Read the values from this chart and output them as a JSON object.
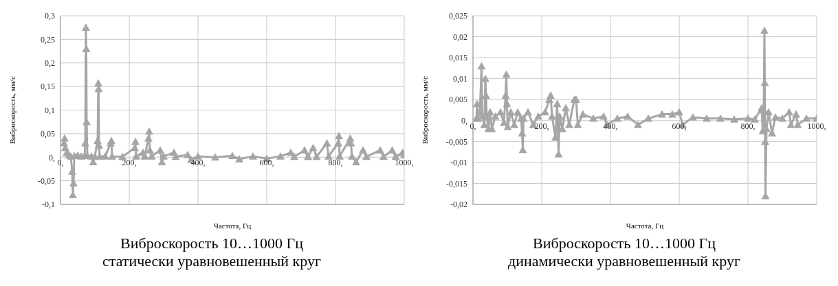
{
  "chart_data": [
    {
      "type": "line",
      "title": "Виброскорость 10…1000 Гц",
      "subtitle": "статически уравновешенный круг",
      "xlabel": "Частота, Гц",
      "ylabel": "Виброскорость, мм/с",
      "color": "#a6a6a6",
      "marker": "triangle",
      "grid": true,
      "xlim": [
        0,
        1000
      ],
      "xticks": [
        {
          "value": 0,
          "label": "0,"
        },
        {
          "value": 200,
          "label": "200,"
        },
        {
          "value": 400,
          "label": "400,"
        },
        {
          "value": 600,
          "label": "600,"
        },
        {
          "value": 800,
          "label": "800,"
        },
        {
          "value": 1000,
          "label": "1000,"
        }
      ],
      "ylim": [
        -0.1,
        0.3
      ],
      "yticks": [
        {
          "value": -0.1,
          "label": "-0,1"
        },
        {
          "value": -0.05,
          "label": "-0,05"
        },
        {
          "value": 0,
          "label": "0,"
        },
        {
          "value": 0.05,
          "label": "0,05"
        },
        {
          "value": 0.1,
          "label": "0,1"
        },
        {
          "value": 0.15,
          "label": "0,15"
        },
        {
          "value": 0.2,
          "label": "0,2"
        },
        {
          "value": 0.25,
          "label": "0,25"
        },
        {
          "value": 0.3,
          "label": "0,3"
        }
      ],
      "x": [
        10,
        12,
        14,
        18,
        24,
        30,
        34,
        36,
        38,
        40,
        50,
        60,
        70,
        72,
        74,
        75,
        76,
        78,
        90,
        95,
        100,
        108,
        110,
        111,
        112,
        114,
        130,
        146,
        148,
        150,
        180,
        216,
        218,
        220,
        240,
        245,
        256,
        258,
        260,
        265,
        290,
        295,
        300,
        330,
        335,
        370,
        380,
        400,
        450,
        500,
        520,
        560,
        600,
        640,
        670,
        680,
        710,
        720,
        735,
        745,
        775,
        780,
        808,
        810,
        812,
        843,
        845,
        848,
        860,
        880,
        890,
        930,
        940,
        965,
        975,
        995,
        1000
      ],
      "values": [
        0.03,
        0.04,
        0.02,
        0.01,
        0.005,
        0.002,
        -0.03,
        -0.08,
        -0.055,
        0.003,
        0.004,
        0.002,
        0.003,
        0.03,
        0.275,
        0.23,
        0.075,
        0.003,
        0.002,
        -0.01,
        0.002,
        0.035,
        0.157,
        0.145,
        0.025,
        0.002,
        0.002,
        0.03,
        0.035,
        0.002,
        0.001,
        0.02,
        0.033,
        0.002,
        0.01,
        0.002,
        0.04,
        0.055,
        0.015,
        0.002,
        0.015,
        -0.01,
        0.002,
        0.01,
        0.001,
        0.005,
        -0.005,
        0.002,
        0,
        0.003,
        -0.004,
        0.002,
        -0.003,
        0.002,
        0.01,
        0.001,
        0.015,
        0.001,
        0.02,
        0.001,
        0.03,
        0.002,
        0.03,
        0.045,
        0.002,
        0.04,
        0.03,
        0.002,
        -0.01,
        0.015,
        0.001,
        0.015,
        0.001,
        0.015,
        0.001,
        0.01,
        0.005
      ]
    },
    {
      "type": "line",
      "title": "Виброскорость 10…1000 Гц",
      "subtitle": "динамически уравновешенный круг",
      "xlabel": "Частота, Гц",
      "ylabel": "Виброскорость, мм/с",
      "color": "#a6a6a6",
      "marker": "triangle",
      "grid": true,
      "xlim": [
        0,
        1000
      ],
      "xticks": [
        {
          "value": 0,
          "label": "0,"
        },
        {
          "value": 200,
          "label": "200,"
        },
        {
          "value": 400,
          "label": "400,"
        },
        {
          "value": 600,
          "label": "600,"
        },
        {
          "value": 800,
          "label": "800,"
        },
        {
          "value": 1000,
          "label": "1000,"
        }
      ],
      "ylim": [
        -0.02,
        0.025
      ],
      "yticks": [
        {
          "value": -0.02,
          "label": "-0,02"
        },
        {
          "value": -0.015,
          "label": "-0,015"
        },
        {
          "value": -0.01,
          "label": "-0,01"
        },
        {
          "value": -0.005,
          "label": "-0,005"
        },
        {
          "value": 0,
          "label": "0,"
        },
        {
          "value": 0.005,
          "label": "0,005"
        },
        {
          "value": 0.01,
          "label": "0,01"
        },
        {
          "value": 0.015,
          "label": "0,015"
        },
        {
          "value": 0.02,
          "label": "0,02"
        },
        {
          "value": 0.025,
          "label": "0,025"
        }
      ],
      "x": [
        10,
        12,
        14,
        20,
        25,
        27,
        33,
        36,
        38,
        40,
        45,
        50,
        55,
        65,
        80,
        90,
        95,
        97,
        99,
        101,
        110,
        120,
        130,
        140,
        143,
        145,
        147,
        160,
        175,
        190,
        210,
        222,
        226,
        230,
        240,
        245,
        249,
        252,
        260,
        270,
        280,
        295,
        300,
        305,
        320,
        350,
        380,
        390,
        420,
        450,
        480,
        510,
        550,
        580,
        600,
        610,
        640,
        680,
        720,
        760,
        800,
        820,
        840,
        843,
        846,
        848,
        849,
        850,
        851,
        854,
        860,
        870,
        880,
        900,
        920,
        925,
        940,
        945,
        970,
        1000
      ],
      "values": [
        0.0005,
        0.004,
        0.0005,
        0.002,
        0.013,
        0.001,
        -0.001,
        0.01,
        0.006,
        0.001,
        -0.002,
        0.002,
        -0.002,
        0.001,
        0.002,
        -0.0005,
        0.006,
        0.011,
        0.004,
        -0.0015,
        0.002,
        -0.001,
        0.002,
        0.0005,
        -0.003,
        -0.007,
        0.0005,
        0.002,
        -0.001,
        0.001,
        0.002,
        0.005,
        0.006,
        0.001,
        -0.004,
        0.004,
        -0.008,
        0.001,
        -0.002,
        0.003,
        -0.001,
        0.005,
        0.005,
        -0.001,
        0.0015,
        0.0005,
        0.001,
        -0.001,
        0.0005,
        0.001,
        -0.001,
        0.0005,
        0.0015,
        0.0015,
        0.002,
        -0.001,
        0.0008,
        0.0005,
        0.0005,
        0.0003,
        0.0005,
        0.0003,
        0.003,
        -0.0025,
        0.0025,
        0.0215,
        0.009,
        -0.005,
        -0.018,
        -0.002,
        0.002,
        -0.003,
        0.0008,
        0.0005,
        0.002,
        -0.001,
        0.0015,
        -0.001,
        0.0005,
        0.0005
      ]
    }
  ]
}
